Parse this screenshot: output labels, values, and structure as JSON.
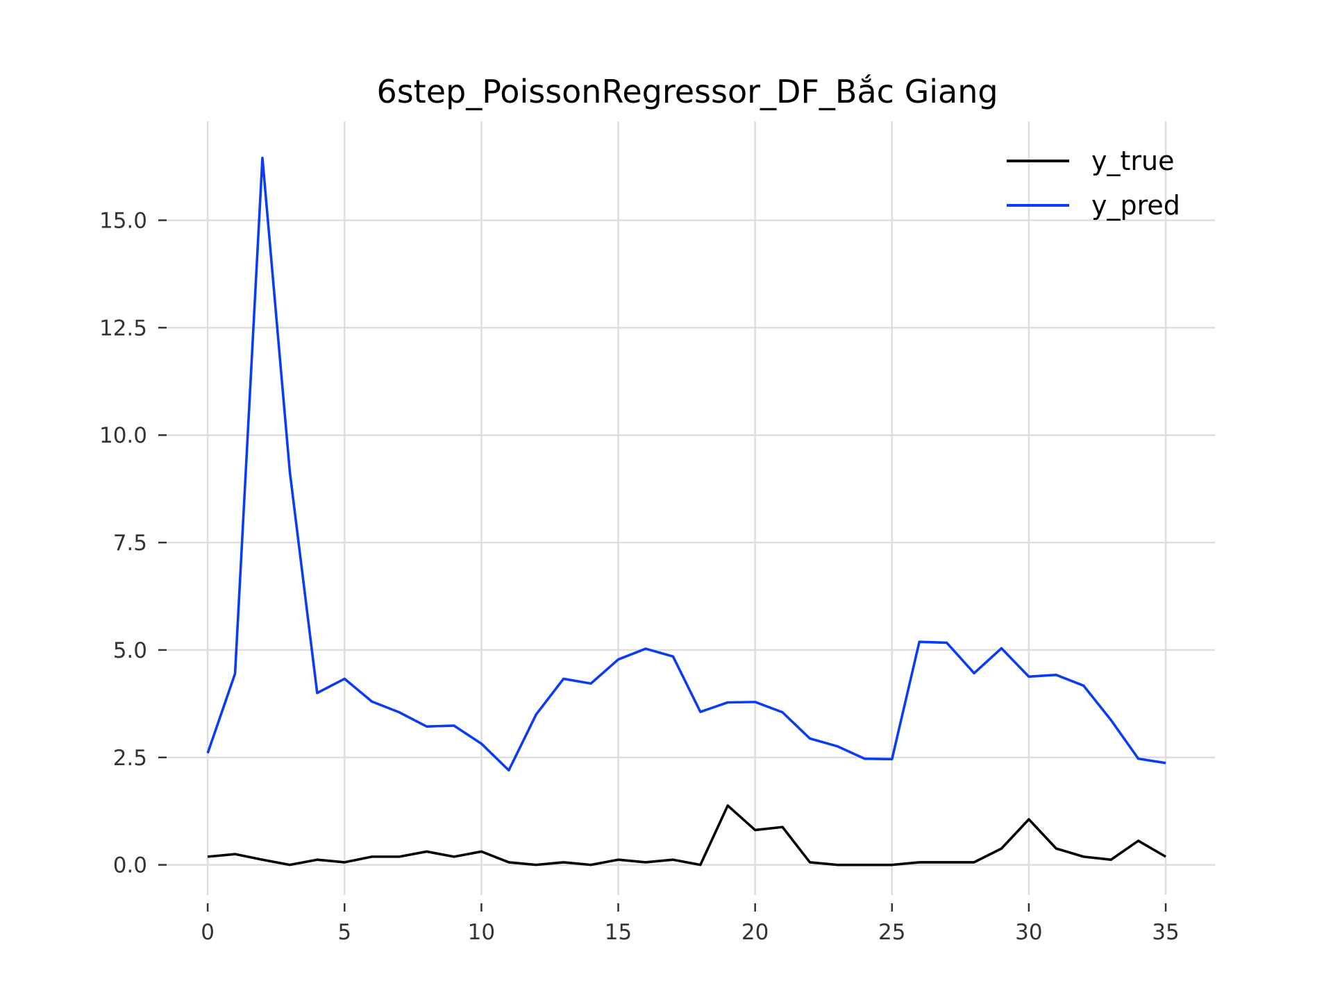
{
  "chart_data": {
    "type": "line",
    "title": "6step_PoissonRegressor_DF_Bắc Giang",
    "xlabel": "",
    "ylabel": "",
    "xlim": [
      -1.5,
      36.8
    ],
    "ylim": [
      -0.7,
      17.3
    ],
    "xticks": [
      0,
      5,
      10,
      15,
      20,
      25,
      30,
      35
    ],
    "xtick_labels": [
      "0",
      "5",
      "10",
      "15",
      "20",
      "25",
      "30",
      "35"
    ],
    "yticks": [
      0,
      2.5,
      5,
      7.5,
      10,
      12.5,
      15
    ],
    "ytick_labels": [
      "0.0",
      "2.5",
      "5.0",
      "7.5",
      "10.0",
      "12.5",
      "15.0"
    ],
    "grid": true,
    "legend_position": "top-right",
    "x": [
      0,
      1,
      2,
      3,
      4,
      5,
      6,
      7,
      8,
      9,
      10,
      11,
      12,
      13,
      14,
      15,
      16,
      17,
      18,
      19,
      20,
      21,
      22,
      23,
      24,
      25,
      26,
      27,
      28,
      29,
      30,
      31,
      32,
      33,
      34,
      35
    ],
    "series": [
      {
        "name": "y_true",
        "color": "#000000",
        "values": [
          0.19,
          0.25,
          0.12,
          0.0,
          0.12,
          0.06,
          0.19,
          0.19,
          0.31,
          0.19,
          0.31,
          0.06,
          0.0,
          0.06,
          0.0,
          0.12,
          0.06,
          0.12,
          0.0,
          1.38,
          0.81,
          0.88,
          0.06,
          0.0,
          0.0,
          0.0,
          0.06,
          0.06,
          0.06,
          0.38,
          1.06,
          0.38,
          0.19,
          0.12,
          0.56,
          0.19
        ]
      },
      {
        "name": "y_pred",
        "color": "#0a3cf5",
        "values": [
          2.6,
          4.45,
          16.45,
          9.15,
          4.0,
          4.33,
          3.8,
          3.55,
          3.22,
          3.24,
          2.82,
          2.2,
          3.5,
          4.33,
          4.22,
          4.78,
          5.03,
          4.85,
          3.56,
          3.78,
          3.79,
          3.55,
          2.94,
          2.76,
          2.47,
          2.46,
          5.19,
          5.17,
          4.46,
          5.04,
          4.38,
          4.42,
          4.17,
          3.37,
          2.47,
          2.37
        ]
      }
    ]
  }
}
